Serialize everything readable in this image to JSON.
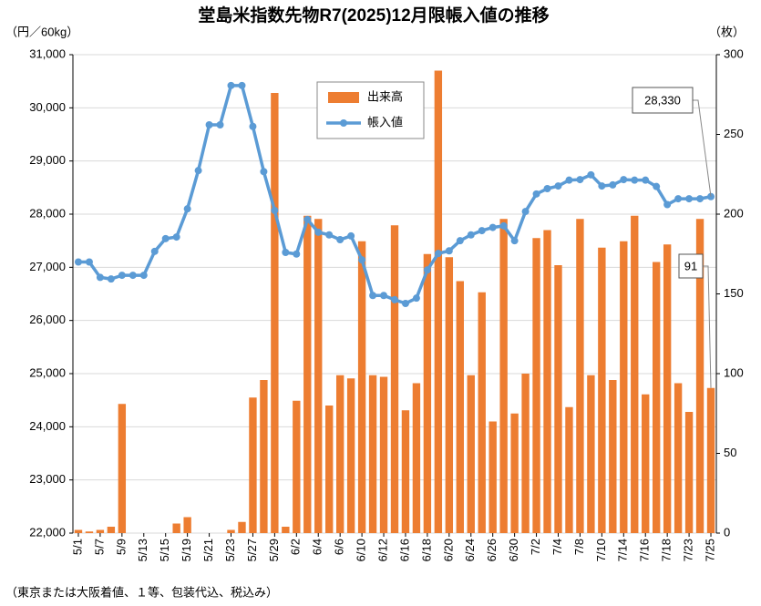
{
  "chart_data": {
    "type": "bar_line",
    "title": "堂島米指数先物R7(2025)12月限帳入値の推移",
    "y_label": "（円／60kg）",
    "y2_label": "（枚）",
    "note": "（東京または大阪着値、１等、包装代込、税込み）",
    "categories": [
      "5/1",
      null,
      "5/7",
      null,
      "5/9",
      null,
      "5/13",
      null,
      "5/15",
      null,
      "5/19",
      null,
      "5/21",
      null,
      "5/23",
      null,
      "5/27",
      null,
      "5/29",
      null,
      "6/2",
      null,
      "6/4",
      null,
      "6/6",
      null,
      "6/10",
      null,
      "6/12",
      null,
      "6/16",
      null,
      "6/18",
      null,
      "6/20",
      null,
      "6/24",
      null,
      "6/26",
      null,
      "6/30",
      null,
      "7/2",
      null,
      "7/4",
      null,
      "7/8",
      null,
      "7/10",
      null,
      "7/14",
      null,
      "7/16",
      null,
      "7/18",
      null,
      "7/23",
      null,
      "7/25"
    ],
    "series": [
      {
        "name": "出来高",
        "type": "bar",
        "axis": "y2",
        "color": "#ed7d31",
        "values": [
          2,
          1,
          2,
          4,
          81,
          0,
          0,
          0,
          0,
          6,
          10,
          0,
          0,
          0,
          2,
          7,
          85,
          96,
          276,
          4,
          83,
          199,
          197,
          80,
          99,
          97,
          183,
          99,
          98,
          193,
          77,
          94,
          175,
          290,
          173,
          158,
          99,
          151,
          70,
          197,
          75,
          100,
          185,
          190,
          168,
          79,
          197,
          99,
          179,
          96,
          183,
          199,
          87,
          170,
          181,
          94,
          76,
          197,
          91
        ],
        "value_labels": [
          null,
          null,
          null,
          null,
          null,
          null,
          null,
          null,
          null,
          null,
          null,
          null,
          null,
          null,
          null,
          null,
          null,
          null,
          null,
          null,
          null,
          null,
          null,
          null,
          null,
          null,
          null,
          null,
          null,
          null,
          null,
          null,
          null,
          null,
          null,
          null,
          null,
          null,
          null,
          null,
          null,
          null,
          null,
          null,
          null,
          null,
          null,
          null,
          null,
          null,
          null,
          null,
          null,
          null,
          null,
          null,
          null,
          null,
          "91"
        ]
      },
      {
        "name": "帳入値",
        "type": "line",
        "axis": "y",
        "color": "#5b9bd5",
        "values": [
          27100,
          27100,
          26810,
          26780,
          26850,
          26850,
          26850,
          27300,
          27540,
          27570,
          28100,
          28820,
          29680,
          29680,
          30420,
          30420,
          29650,
          28800,
          28070,
          27280,
          27250,
          27900,
          27660,
          27610,
          27520,
          27590,
          27140,
          26470,
          26470,
          26390,
          26320,
          26420,
          26950,
          27260,
          27310,
          27500,
          27610,
          27690,
          27750,
          27780,
          27500,
          28050,
          28380,
          28480,
          28530,
          28640,
          28650,
          28740,
          28530,
          28550,
          28650,
          28640,
          28640,
          28520,
          28180,
          28290,
          28290,
          28290,
          28330
        ],
        "value_labels": [
          null,
          null,
          null,
          null,
          null,
          null,
          null,
          null,
          null,
          null,
          null,
          null,
          null,
          null,
          null,
          null,
          null,
          null,
          null,
          null,
          null,
          null,
          null,
          null,
          null,
          null,
          null,
          null,
          null,
          null,
          null,
          null,
          null,
          null,
          null,
          null,
          null,
          null,
          null,
          null,
          null,
          null,
          null,
          null,
          null,
          null,
          null,
          null,
          null,
          null,
          null,
          null,
          null,
          null,
          null,
          null,
          null,
          null,
          "28,330"
        ]
      }
    ],
    "ylim": [
      22000,
      31000
    ],
    "yticks": [
      {
        "value": 22000,
        "label": "22,000"
      },
      {
        "value": 23000,
        "label": "23,000"
      },
      {
        "value": 24000,
        "label": "24,000"
      },
      {
        "value": 25000,
        "label": "25,000"
      },
      {
        "value": 26000,
        "label": "26,000"
      },
      {
        "value": 27000,
        "label": "27,000"
      },
      {
        "value": 28000,
        "label": "28,000"
      },
      {
        "value": 29000,
        "label": "29,000"
      },
      {
        "value": 30000,
        "label": "30,000"
      },
      {
        "value": 31000,
        "label": "31,000"
      }
    ],
    "y2lim": [
      0,
      300
    ],
    "y2ticks": [
      0,
      50,
      100,
      150,
      200,
      250,
      300
    ],
    "grid": true
  }
}
